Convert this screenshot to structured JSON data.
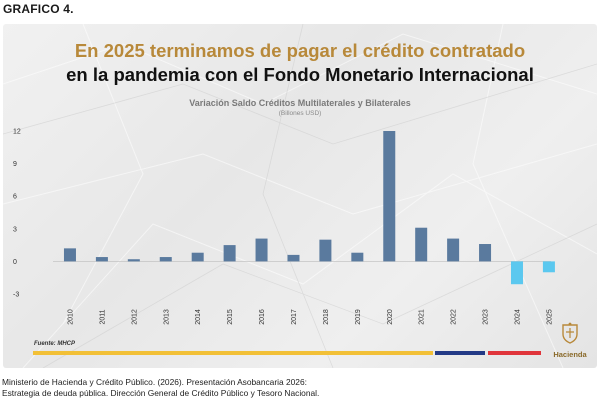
{
  "figure_label": "GRAFICO 4.",
  "headline": {
    "line1": "En 2025 terminamos de pagar el crédito contratado",
    "line2": "en la pandemia con el Fondo Monetario Internacional"
  },
  "source": "Fuente: MHCP",
  "logo": {
    "text": "Hacienda",
    "icon": "crest-icon"
  },
  "caption": {
    "line1": "Ministerio de Hacienda y Crédito Público. (2026). Presentación Asobancaria 2026:",
    "line2": "Estrategia de deuda pública. Dirección General de Crédito Público y Tesoro Nacional."
  },
  "colors": {
    "headline_gold": "#b8893a",
    "bar_positive": "#5a7a9e",
    "bar_negative": "#5bc8ef",
    "stripe_yellow": "#f2c037",
    "stripe_blue": "#233a86",
    "stripe_red": "#e0353b"
  },
  "chart_data": {
    "type": "bar",
    "title": "Variación Saldo Créditos Multilaterales y Bilaterales",
    "subtitle": "(Billones USD)",
    "xlabel": "",
    "ylabel": "",
    "categories": [
      "2010",
      "2011",
      "2012",
      "2013",
      "2014",
      "2015",
      "2016",
      "2017",
      "2018",
      "2019",
      "2020",
      "2021",
      "2022",
      "2023",
      "2024",
      "2025"
    ],
    "values": [
      1.2,
      0.4,
      0.2,
      0.4,
      0.8,
      1.5,
      2.1,
      0.6,
      2.0,
      0.8,
      12.0,
      3.1,
      2.1,
      1.6,
      -2.1,
      -1.0
    ],
    "yticks": [
      12,
      9,
      6,
      3,
      0,
      -3
    ],
    "ylim": [
      -3,
      12
    ],
    "grid": false,
    "legend": "none"
  }
}
